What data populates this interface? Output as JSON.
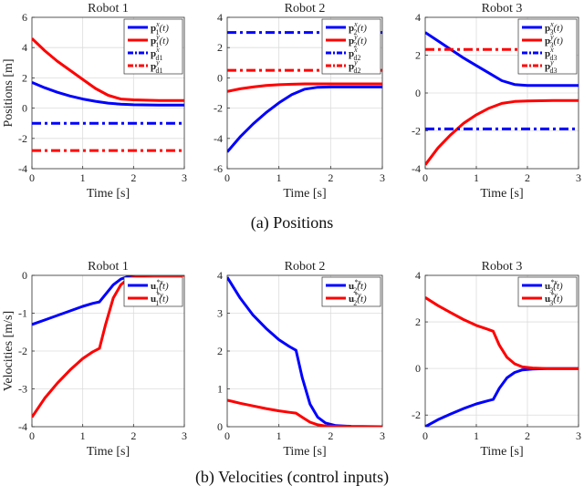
{
  "captions": {
    "positions": "(a)  Positions",
    "velocities": "(b)  Velocities (control inputs)"
  },
  "colors": {
    "blue": "#0000ff",
    "red": "#ff0000"
  },
  "chart_data": [
    {
      "type": "line",
      "title": "Robot 1",
      "xlabel": "Time [s]",
      "ylabel": "Positions [m]",
      "xlim": [
        0,
        3
      ],
      "ylim": [
        -4,
        6
      ],
      "xticks": [
        0,
        1,
        2,
        3
      ],
      "yticks": [
        -4,
        -2,
        0,
        2,
        4,
        6
      ],
      "grid": true,
      "legend_position": "top-right",
      "series": [
        {
          "name": "p_1^x(t)",
          "style": "solid",
          "color": "blue",
          "x": [
            0,
            0.25,
            0.5,
            0.75,
            1,
            1.25,
            1.5,
            1.75,
            2,
            2.5,
            3
          ],
          "y": [
            1.7,
            1.35,
            1.05,
            0.8,
            0.6,
            0.45,
            0.33,
            0.26,
            0.22,
            0.2,
            0.2
          ]
        },
        {
          "name": "p_1^y(t)",
          "style": "solid",
          "color": "red",
          "x": [
            0,
            0.25,
            0.5,
            0.75,
            1,
            1.25,
            1.5,
            1.75,
            2,
            2.5,
            3
          ],
          "y": [
            4.6,
            3.8,
            3.1,
            2.5,
            1.9,
            1.3,
            0.85,
            0.6,
            0.55,
            0.5,
            0.5
          ]
        },
        {
          "name": "p_{d_1}^x",
          "style": "dashdot",
          "color": "blue",
          "x": [
            0,
            3
          ],
          "y": [
            -1.0,
            -1.0
          ]
        },
        {
          "name": "p_{d_1}^y",
          "style": "dashdot",
          "color": "red",
          "x": [
            0,
            3
          ],
          "y": [
            -2.8,
            -2.8
          ]
        }
      ]
    },
    {
      "type": "line",
      "title": "Robot 2",
      "xlabel": "Time [s]",
      "ylabel": "",
      "xlim": [
        0,
        3
      ],
      "ylim": [
        -6,
        4
      ],
      "xticks": [
        0,
        1,
        2,
        3
      ],
      "yticks": [
        -6,
        -4,
        -2,
        0,
        2,
        4
      ],
      "grid": true,
      "legend_position": "top-right",
      "series": [
        {
          "name": "p_2^x(t)",
          "style": "solid",
          "color": "blue",
          "x": [
            0,
            0.25,
            0.5,
            0.75,
            1,
            1.25,
            1.5,
            1.75,
            2,
            2.5,
            3
          ],
          "y": [
            -4.9,
            -3.9,
            -3.05,
            -2.3,
            -1.65,
            -1.1,
            -0.75,
            -0.62,
            -0.6,
            -0.6,
            -0.6
          ]
        },
        {
          "name": "p_2^y(t)",
          "style": "solid",
          "color": "red",
          "x": [
            0,
            0.25,
            0.5,
            0.75,
            1,
            1.25,
            1.5,
            1.75,
            2,
            2.5,
            3
          ],
          "y": [
            -0.9,
            -0.72,
            -0.6,
            -0.5,
            -0.45,
            -0.42,
            -0.4,
            -0.4,
            -0.4,
            -0.4,
            -0.4
          ]
        },
        {
          "name": "p_{d_2}^x",
          "style": "dashdot",
          "color": "blue",
          "x": [
            0,
            3
          ],
          "y": [
            3.0,
            3.0
          ]
        },
        {
          "name": "p_{d_2}^y",
          "style": "dashdot",
          "color": "red",
          "x": [
            0,
            3
          ],
          "y": [
            0.5,
            0.5
          ]
        }
      ]
    },
    {
      "type": "line",
      "title": "Robot 3",
      "xlabel": "Time [s]",
      "ylabel": "",
      "xlim": [
        0,
        3
      ],
      "ylim": [
        -4,
        4
      ],
      "xticks": [
        0,
        1,
        2,
        3
      ],
      "yticks": [
        -4,
        -2,
        0,
        2,
        4
      ],
      "grid": true,
      "legend_position": "top-right",
      "series": [
        {
          "name": "p_3^x(t)",
          "style": "solid",
          "color": "blue",
          "x": [
            0,
            0.25,
            0.5,
            0.75,
            1,
            1.25,
            1.5,
            1.75,
            2,
            2.5,
            3
          ],
          "y": [
            3.2,
            2.75,
            2.3,
            1.85,
            1.45,
            1.05,
            0.65,
            0.45,
            0.4,
            0.4,
            0.4
          ]
        },
        {
          "name": "p_3^y(t)",
          "style": "solid",
          "color": "red",
          "x": [
            0,
            0.25,
            0.5,
            0.75,
            1,
            1.25,
            1.5,
            1.75,
            2,
            2.5,
            3
          ],
          "y": [
            -3.8,
            -2.9,
            -2.2,
            -1.6,
            -1.15,
            -0.8,
            -0.55,
            -0.45,
            -0.42,
            -0.4,
            -0.4
          ]
        },
        {
          "name": "p_{d_3}^x",
          "style": "dashdot",
          "color": "blue",
          "x": [
            0,
            3
          ],
          "y": [
            -1.9,
            -1.9
          ]
        },
        {
          "name": "p_{d_3}^y",
          "style": "dashdot",
          "color": "red",
          "x": [
            0,
            3
          ],
          "y": [
            2.3,
            2.3
          ]
        }
      ]
    },
    {
      "type": "line",
      "title": "Robot 1",
      "xlabel": "Time [s]",
      "ylabel": "Velocities [m/s]",
      "xlim": [
        0,
        3
      ],
      "ylim": [
        -4,
        0
      ],
      "xticks": [
        0,
        1,
        2,
        3
      ],
      "yticks": [
        -4,
        -3,
        -2,
        -1,
        0
      ],
      "grid": true,
      "legend_position": "top-right",
      "series": [
        {
          "name": "u_1^{*x}(t)",
          "style": "solid",
          "color": "blue",
          "x": [
            0,
            0.25,
            0.5,
            0.75,
            1,
            1.2,
            1.33,
            1.45,
            1.6,
            1.75,
            1.9,
            2.1,
            2.4,
            3
          ],
          "y": [
            -1.3,
            -1.18,
            -1.06,
            -0.94,
            -0.82,
            -0.74,
            -0.7,
            -0.5,
            -0.25,
            -0.1,
            -0.03,
            0,
            0,
            0
          ]
        },
        {
          "name": "u_1^{*y}(t)",
          "style": "solid",
          "color": "red",
          "x": [
            0,
            0.25,
            0.5,
            0.75,
            1,
            1.2,
            1.33,
            1.45,
            1.6,
            1.75,
            1.9,
            2.1,
            2.4,
            3
          ],
          "y": [
            -3.75,
            -3.25,
            -2.85,
            -2.5,
            -2.2,
            -2.02,
            -1.93,
            -1.3,
            -0.6,
            -0.25,
            -0.08,
            -0.02,
            0,
            0
          ]
        }
      ]
    },
    {
      "type": "line",
      "title": "Robot 2",
      "xlabel": "Time [s]",
      "ylabel": "",
      "xlim": [
        0,
        3
      ],
      "ylim": [
        0,
        4
      ],
      "xticks": [
        0,
        1,
        2,
        3
      ],
      "yticks": [
        0,
        1,
        2,
        3,
        4
      ],
      "grid": true,
      "legend_position": "top-right",
      "series": [
        {
          "name": "u_2^{*x}(t)",
          "style": "solid",
          "color": "blue",
          "x": [
            0,
            0.25,
            0.5,
            0.75,
            1,
            1.2,
            1.33,
            1.45,
            1.6,
            1.75,
            1.9,
            2.1,
            2.4,
            3
          ],
          "y": [
            3.95,
            3.4,
            2.95,
            2.6,
            2.3,
            2.12,
            2.02,
            1.3,
            0.6,
            0.25,
            0.1,
            0.03,
            0.01,
            0
          ]
        },
        {
          "name": "u_2^{*y}(t)",
          "style": "solid",
          "color": "red",
          "x": [
            0,
            0.25,
            0.5,
            0.75,
            1,
            1.2,
            1.33,
            1.45,
            1.6,
            1.75,
            1.9,
            2.1,
            2.4,
            3
          ],
          "y": [
            0.7,
            0.62,
            0.55,
            0.48,
            0.42,
            0.38,
            0.36,
            0.25,
            0.12,
            0.05,
            0.02,
            0.01,
            0,
            0
          ]
        }
      ]
    },
    {
      "type": "line",
      "title": "Robot 3",
      "xlabel": "Time [s]",
      "ylabel": "",
      "xlim": [
        0,
        3
      ],
      "ylim": [
        -2.5,
        4
      ],
      "xticks": [
        0,
        1,
        2,
        3
      ],
      "yticks": [
        -2,
        0,
        2,
        4
      ],
      "grid": true,
      "legend_position": "top-right",
      "series": [
        {
          "name": "u_3^{*x}(t)",
          "style": "solid",
          "color": "blue",
          "x": [
            0,
            0.25,
            0.5,
            0.75,
            1,
            1.2,
            1.33,
            1.45,
            1.6,
            1.75,
            1.9,
            2.1,
            2.4,
            3
          ],
          "y": [
            -2.5,
            -2.2,
            -1.95,
            -1.72,
            -1.52,
            -1.4,
            -1.33,
            -0.85,
            -0.4,
            -0.17,
            -0.06,
            -0.02,
            0,
            0
          ]
        },
        {
          "name": "u_3^{*y}(t)",
          "style": "solid",
          "color": "red",
          "x": [
            0,
            0.25,
            0.5,
            0.75,
            1,
            1.2,
            1.33,
            1.45,
            1.6,
            1.75,
            1.9,
            2.1,
            2.4,
            3
          ],
          "y": [
            3.05,
            2.7,
            2.4,
            2.1,
            1.85,
            1.7,
            1.6,
            1.0,
            0.48,
            0.2,
            0.07,
            0.02,
            0,
            0
          ]
        }
      ]
    }
  ]
}
